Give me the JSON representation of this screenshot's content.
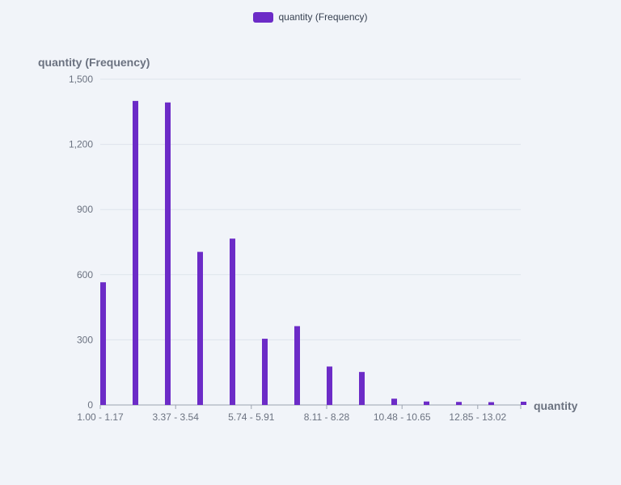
{
  "chart_data": {
    "type": "bar",
    "legend": {
      "label": "quantity (Frequency)",
      "position": "top-center"
    },
    "ylabel": "quantity (Frequency)",
    "xlabel": "quantity",
    "ylim": [
      0,
      1500
    ],
    "yticks": [
      0,
      300,
      600,
      900,
      1200,
      1500
    ],
    "ytick_labels": [
      "0",
      "300",
      "600",
      "900",
      "1,200",
      "1,500"
    ],
    "x_tick_labels": [
      {
        "index": 0,
        "label": "1.00 - 1.17"
      },
      {
        "index": 2.33,
        "label": "3.37 - 3.54"
      },
      {
        "index": 4.67,
        "label": "5.74 - 5.91"
      },
      {
        "index": 7,
        "label": "8.11 - 8.28"
      },
      {
        "index": 9.33,
        "label": "10.48 - 10.65"
      },
      {
        "index": 11.67,
        "label": "12.85 - 13.02"
      }
    ],
    "series": [
      {
        "name": "quantity (Frequency)",
        "values": [
          565,
          1400,
          1393,
          705,
          766,
          305,
          363,
          177,
          152,
          29,
          16,
          14,
          13,
          15
        ]
      }
    ],
    "grid": true,
    "color": "#6c2bc7"
  }
}
